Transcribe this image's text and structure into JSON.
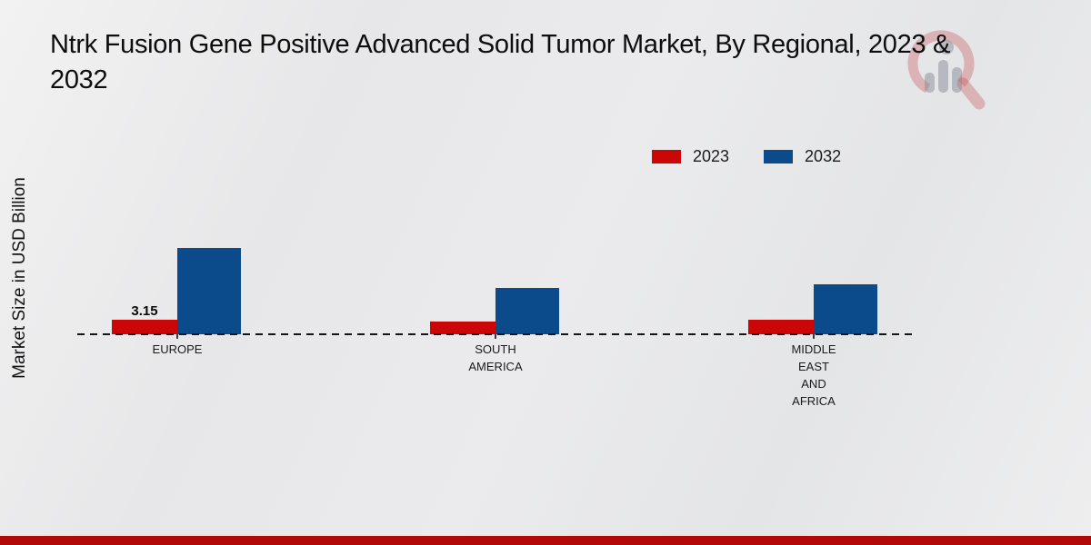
{
  "page": {
    "title_line1": "Ntrk Fusion Gene Positive Advanced Solid Tumor Market, By Regional, 2023 &",
    "title_line2": "2032",
    "watermark_name": "market-research-future-logo"
  },
  "chart_data": {
    "type": "bar",
    "title": "Ntrk Fusion Gene Positive Advanced Solid Tumor Market, By Regional, 2023 & 2032",
    "ylabel": "Market Size in USD Billion",
    "xlabel": "",
    "categories": [
      "EUROPE",
      "SOUTH AMERICA",
      "MIDDLE EAST AND AFRICA"
    ],
    "series": [
      {
        "name": "2023",
        "color": "#CB0606",
        "values": [
          3.15,
          2.8,
          3.2
        ]
      },
      {
        "name": "2032",
        "color": "#0B4A8B",
        "values": [
          19.0,
          10.2,
          10.9
        ]
      }
    ],
    "bar_labels": [
      [
        "3.15",
        "",
        ""
      ],
      [
        "",
        "",
        ""
      ]
    ],
    "ylim": [
      0,
      21
    ],
    "gridlines": false,
    "y_axis_ticks_visible": false,
    "baseline_style": "dashed",
    "legend_position": "top-right"
  },
  "footer": {
    "accent_color": "#B30808"
  }
}
